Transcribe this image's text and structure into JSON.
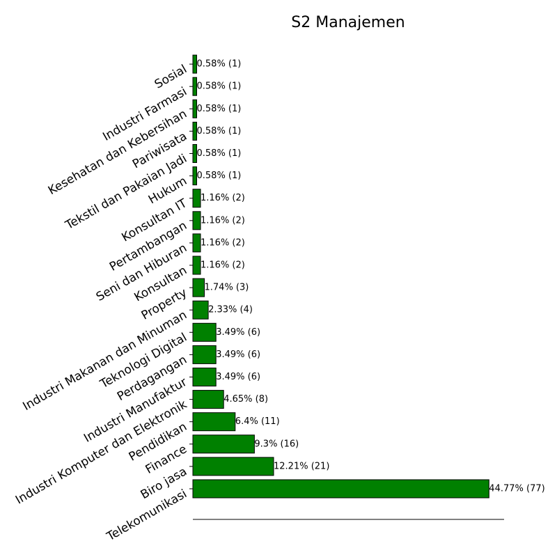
{
  "chart_data": {
    "type": "bar",
    "orientation": "horizontal",
    "title": "S2 Manajemen",
    "xlabel": "",
    "ylabel": "",
    "xlim": [
      0,
      47
    ],
    "grid": false,
    "legend": "none",
    "categories": [
      "Telekomunikasi",
      "Biro jasa",
      "Finance",
      "Pendidikan",
      "Industri Komputer dan Elektronik",
      "Industri Manufaktur",
      "Perdagangan",
      "Teknologi Digital",
      "Industri Makanan dan Minuman",
      "Property",
      "Konsultan",
      "Seni dan Hiburan",
      "Pertambangan",
      "Konsultan IT",
      "Hukum",
      "Tekstil dan Pakaian Jadi",
      "Pariwisata",
      "Kesehatan dan Kebersihan",
      "Industri Farmasi",
      "Sosial"
    ],
    "values": [
      44.77,
      12.21,
      9.3,
      6.4,
      4.65,
      3.49,
      3.49,
      3.49,
      2.33,
      1.74,
      1.16,
      1.16,
      1.16,
      1.16,
      0.58,
      0.58,
      0.58,
      0.58,
      0.58,
      0.58
    ],
    "data_labels": [
      "44.77% (77)",
      "12.21% (21)",
      "9.3% (16)",
      "6.4% (11)",
      "4.65% (8)",
      "3.49% (6)",
      "3.49% (6)",
      "3.49% (6)",
      "2.33% (4)",
      "1.74% (3)",
      "1.16% (2)",
      "1.16% (2)",
      "1.16% (2)",
      "1.16% (2)",
      "0.58% (1)",
      "0.58% (1)",
      "0.58% (1)",
      "0.58% (1)",
      "0.58% (1)",
      "0.58% (1)"
    ],
    "bar_color": "#008000",
    "bar_edge_color": "#000000"
  }
}
